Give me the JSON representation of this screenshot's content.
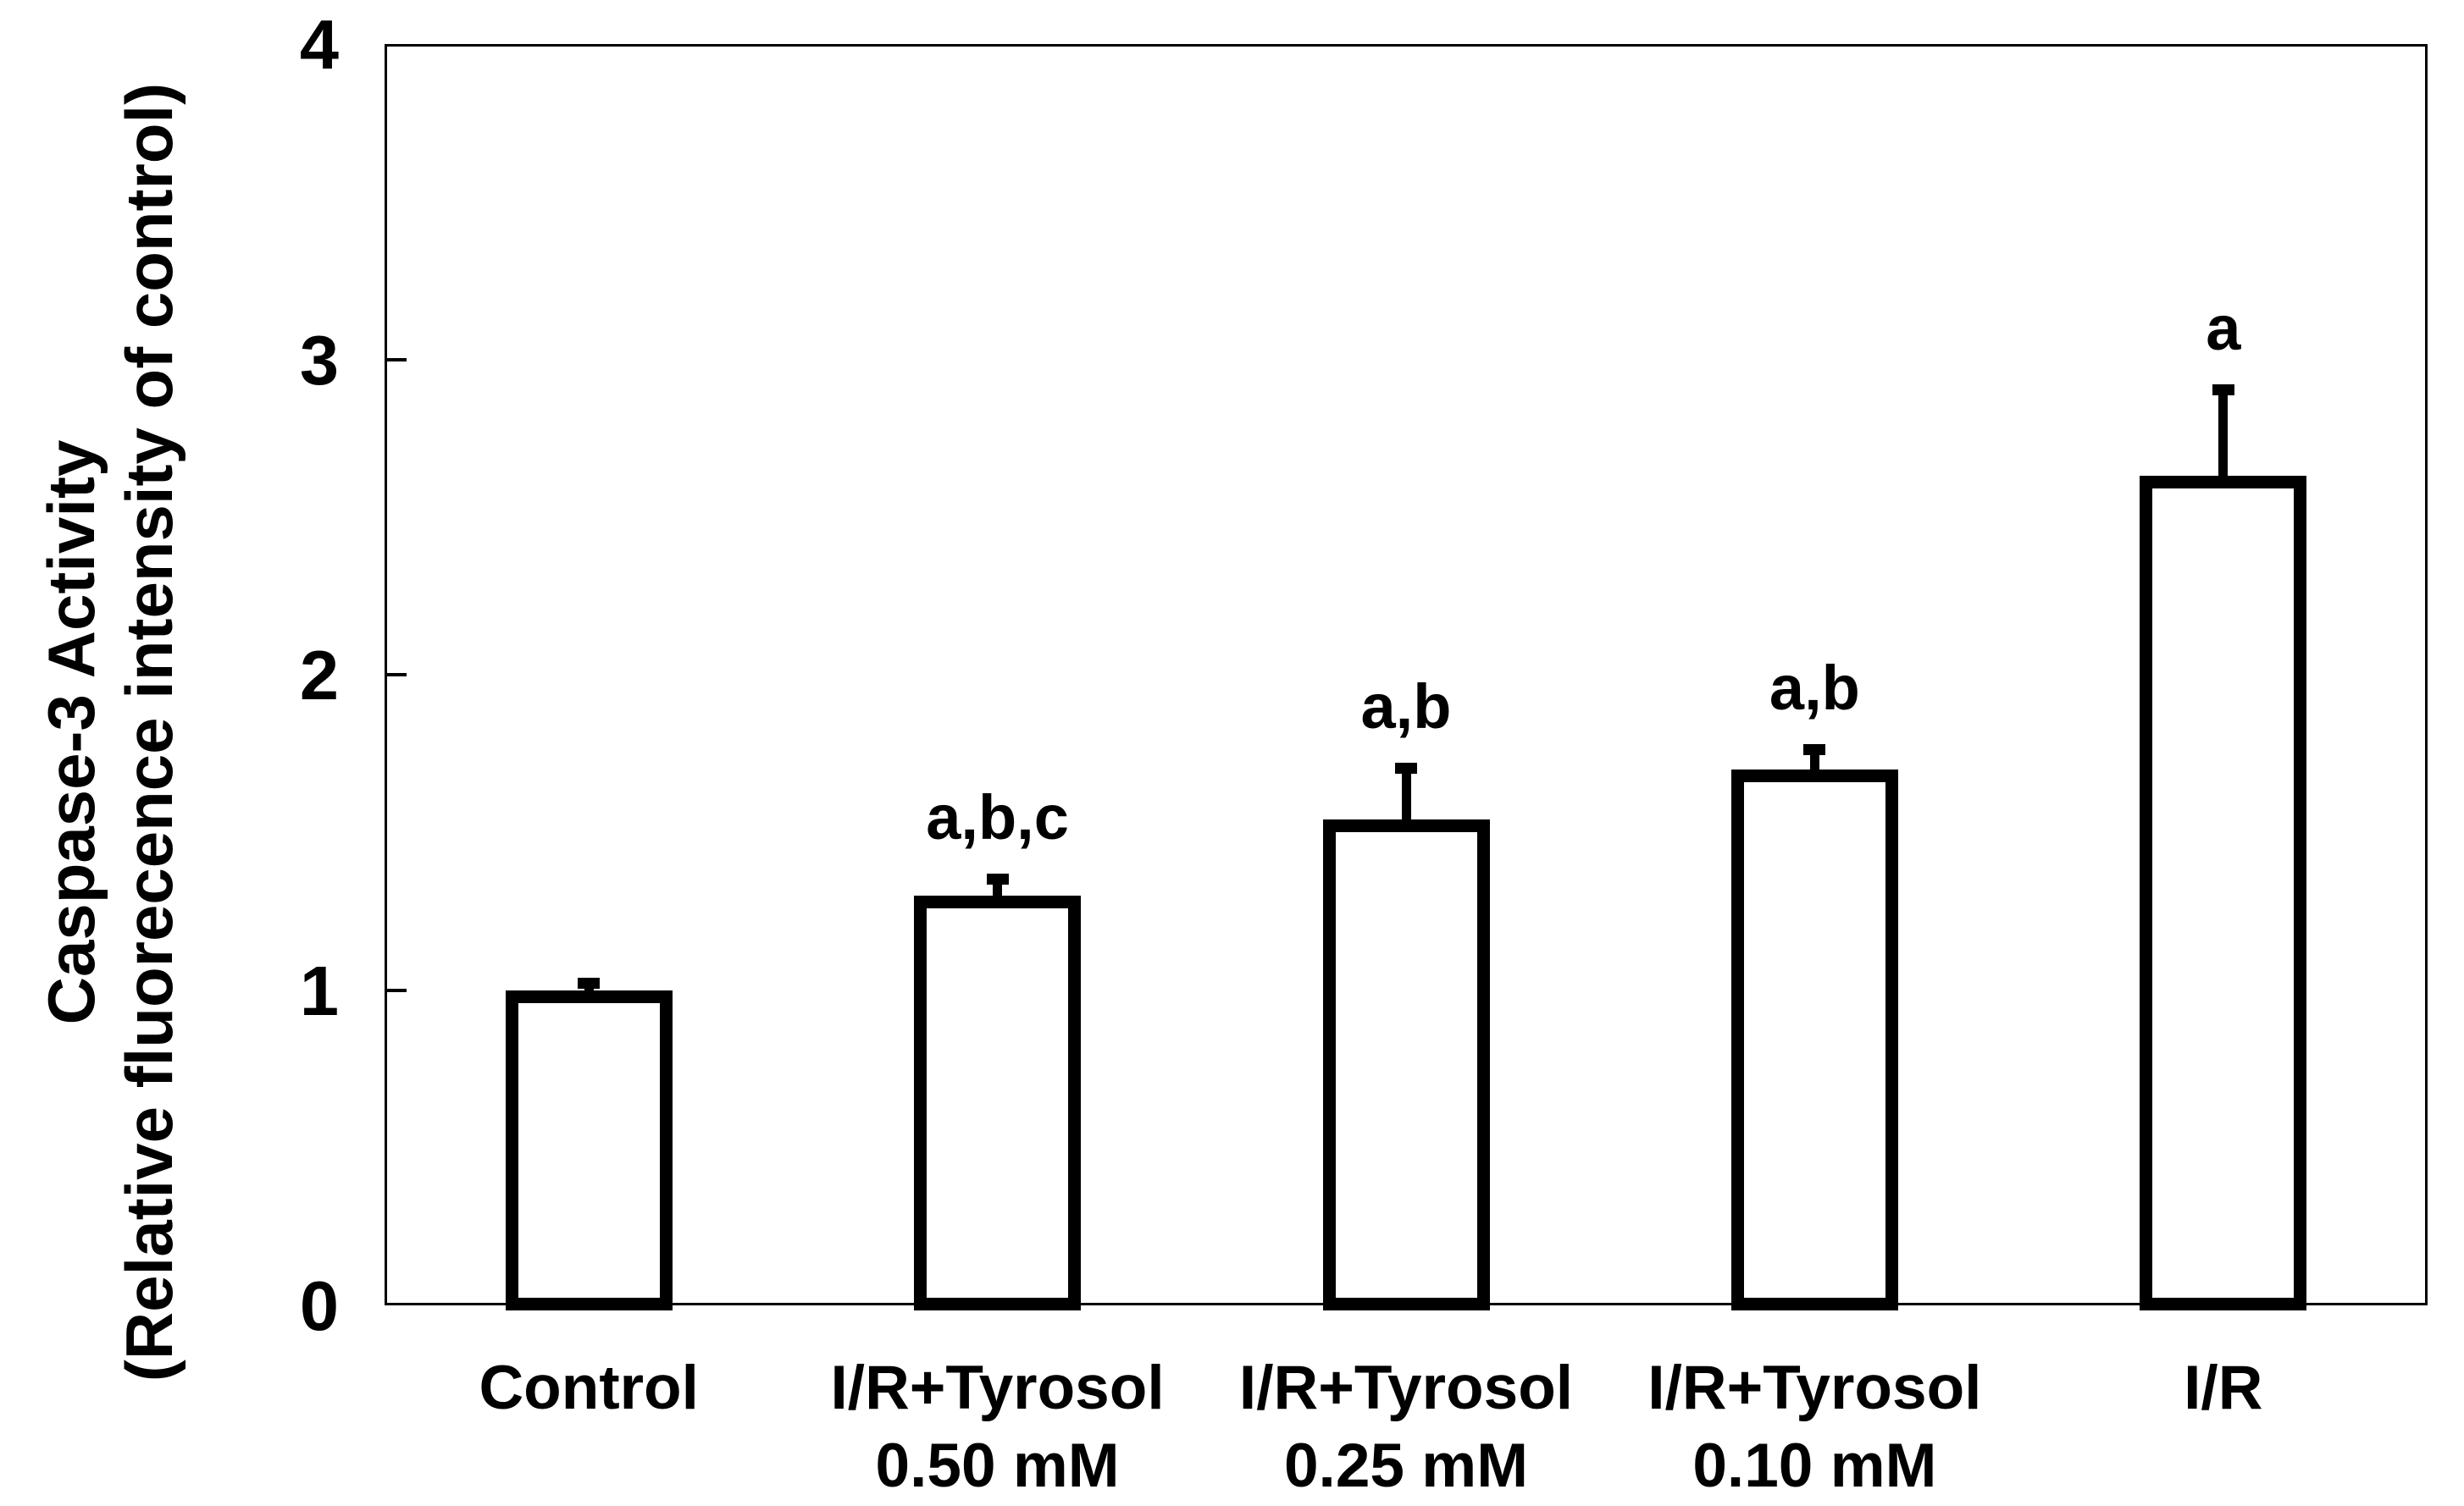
{
  "chart_data": {
    "type": "bar",
    "title": "",
    "ylabel_lines": [
      "Caspase-3 Activity",
      "(Relative fluorecence intensity of control)"
    ],
    "xlabel": "",
    "categories": [
      [
        "Control"
      ],
      [
        "I/R+Tyrosol",
        "0.50 mM"
      ],
      [
        "I/R+Tyrosol",
        "0.25 mM"
      ],
      [
        "I/R+Tyrosol",
        "0.10 mM"
      ],
      [
        "I/R"
      ]
    ],
    "values": [
      1.0,
      1.3,
      1.54,
      1.7,
      2.63
    ],
    "errors_plus": [
      0.04,
      0.07,
      0.18,
      0.08,
      0.29
    ],
    "significance_labels": [
      "",
      "a,b,c",
      "a,b",
      "a,b",
      "a"
    ],
    "ylim": [
      0,
      4
    ],
    "yticks": [
      0,
      1,
      2,
      3,
      4
    ],
    "inner_tick_values": [
      1,
      2,
      3
    ],
    "grid": false,
    "legend": null,
    "bar_fill_color": "#ffffff",
    "bar_border_color": "#000000",
    "axis_color": "#000000",
    "background_color": "#ffffff"
  }
}
